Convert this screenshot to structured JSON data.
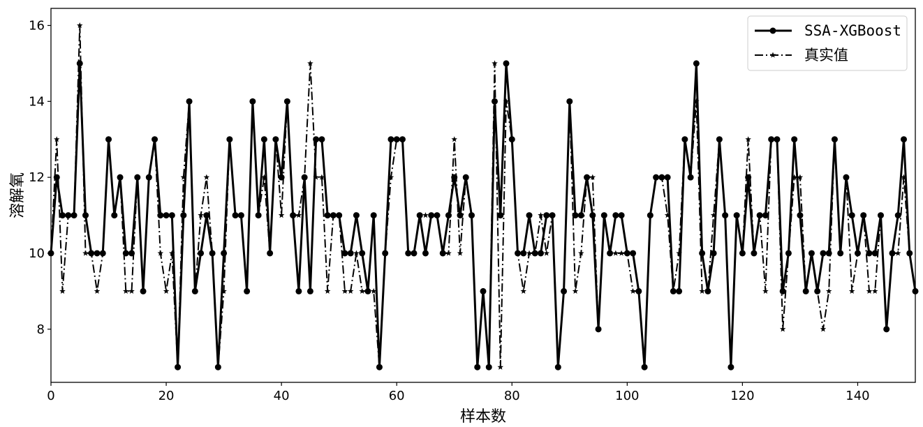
{
  "chart_data": {
    "type": "line",
    "xlabel": "样本数",
    "ylabel": "溶解氧",
    "xlim": [
      0,
      150
    ],
    "ylim": [
      6.6,
      16.45
    ],
    "xticks": [
      0,
      20,
      40,
      60,
      80,
      100,
      120,
      140
    ],
    "yticks": [
      8,
      10,
      12,
      14,
      16
    ],
    "grid": false,
    "legend_position": "top-right",
    "series": [
      {
        "name": "SSA-XGBoost",
        "style": "solid",
        "marker": "circle",
        "color": "#000000",
        "values": [
          10,
          12,
          11,
          11,
          11,
          15,
          11,
          10,
          10,
          10,
          13,
          11,
          12,
          10,
          10,
          12,
          9,
          12,
          13,
          11,
          11,
          11,
          7,
          11,
          14,
          9,
          10,
          11,
          10,
          7,
          10,
          13,
          11,
          11,
          9,
          14,
          11,
          13,
          10,
          13,
          12,
          14,
          11,
          9,
          12,
          9,
          13,
          13,
          11,
          11,
          11,
          10,
          10,
          11,
          10,
          9,
          11,
          7,
          10,
          13,
          13,
          13,
          10,
          10,
          11,
          10,
          11,
          11,
          10,
          11,
          12,
          11,
          12,
          11,
          7,
          9,
          7,
          14,
          11,
          15,
          13,
          10,
          10,
          11,
          10,
          10,
          11,
          11,
          7,
          9,
          14,
          11,
          11,
          12,
          11,
          8,
          11,
          10,
          11,
          11,
          10,
          10,
          9,
          7,
          11,
          12,
          12,
          12,
          9,
          9,
          13,
          12,
          15,
          10,
          9,
          10,
          13,
          11,
          7,
          11,
          10,
          12,
          10,
          11,
          11,
          13,
          13,
          9,
          10,
          13,
          11,
          9,
          10,
          9,
          10,
          10,
          13,
          10,
          12,
          11,
          10,
          11,
          10,
          10,
          11,
          8,
          10,
          11,
          13,
          10,
          9
        ]
      },
      {
        "name": "真实值",
        "style": "dashdot",
        "marker": "star",
        "color": "#000000",
        "values": [
          10,
          13,
          9,
          11,
          11,
          16,
          10,
          10,
          9,
          10,
          13,
          11,
          12,
          9,
          9,
          12,
          9,
          12,
          13,
          10,
          9,
          10,
          7,
          12,
          14,
          9,
          11,
          12,
          10,
          7,
          9,
          13,
          11,
          11,
          9,
          14,
          11,
          12,
          10,
          13,
          11,
          14,
          11,
          11,
          12,
          15,
          12,
          12,
          9,
          11,
          11,
          9,
          9,
          10,
          9,
          9,
          9,
          7,
          10,
          12,
          13,
          13,
          10,
          10,
          11,
          11,
          11,
          11,
          10,
          10,
          13,
          10,
          12,
          11,
          7,
          9,
          7,
          15,
          7,
          14,
          13,
          10,
          9,
          10,
          10,
          11,
          10,
          11,
          7,
          9,
          14,
          9,
          10,
          12,
          12,
          8,
          11,
          10,
          10,
          10,
          10,
          9,
          9,
          7,
          11,
          12,
          12,
          11,
          9,
          10,
          13,
          12,
          14,
          9,
          9,
          11,
          13,
          11,
          7,
          11,
          10,
          13,
          10,
          11,
          9,
          13,
          13,
          8,
          10,
          12,
          12,
          9,
          10,
          9,
          8,
          9,
          13,
          10,
          12,
          9,
          10,
          11,
          9,
          9,
          11,
          8,
          10,
          10,
          12,
          10,
          9
        ]
      }
    ]
  }
}
